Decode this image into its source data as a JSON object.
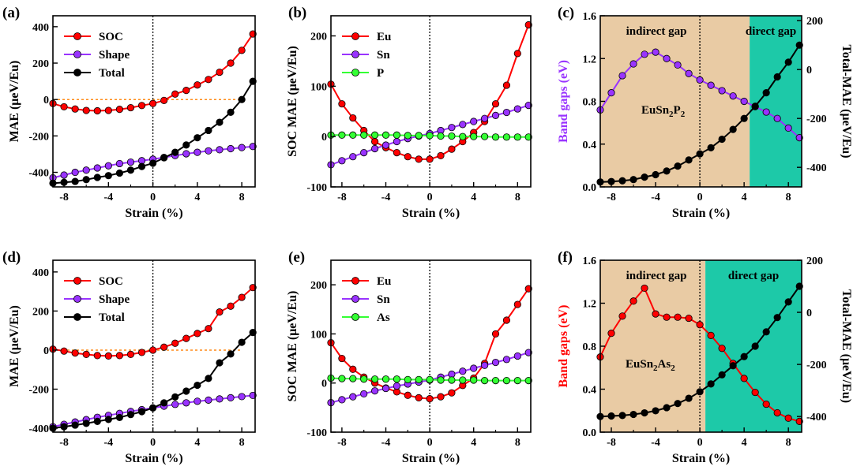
{
  "panels": [
    {
      "label": "(a)",
      "xlabel": "Strain (%)",
      "ylabel": "MAE (μeV/Eu)",
      "xlim": [
        -9,
        9.2
      ],
      "ylim": [
        -480,
        460
      ],
      "xticks": [
        -8,
        -4,
        0,
        4,
        8
      ],
      "yticks": [
        -400,
        -200,
        0,
        200,
        400
      ],
      "zero_line": true,
      "legend": "top-left",
      "series": [
        {
          "name": "SOC",
          "color": "#ff0000",
          "x": [
            -9,
            -8,
            -7,
            -6,
            -5,
            -4,
            -3,
            -2,
            -1,
            0,
            1,
            2,
            3,
            4,
            5,
            6,
            7,
            8,
            9
          ],
          "y": [
            -22,
            -40,
            -52,
            -60,
            -62,
            -60,
            -54,
            -45,
            -33,
            -22,
            -5,
            30,
            50,
            80,
            110,
            150,
            200,
            270,
            360
          ]
        },
        {
          "name": "Shape",
          "color": "#9933ff",
          "x": [
            -9,
            -8,
            -7,
            -6,
            -5,
            -4,
            -3,
            -2,
            -1,
            0,
            1,
            2,
            3,
            4,
            5,
            6,
            7,
            8,
            9
          ],
          "y": [
            -430,
            -415,
            -400,
            -388,
            -376,
            -364,
            -352,
            -344,
            -336,
            -328,
            -318,
            -308,
            -298,
            -290,
            -282,
            -276,
            -270,
            -264,
            -258
          ]
        },
        {
          "name": "Total",
          "color": "#000000",
          "x": [
            -9,
            -8,
            -7,
            -6,
            -5,
            -4,
            -3,
            -2,
            -1,
            0,
            1,
            2,
            3,
            4,
            5,
            6,
            7,
            8,
            9
          ],
          "y": [
            -460,
            -455,
            -450,
            -440,
            -428,
            -418,
            -404,
            -388,
            -368,
            -350,
            -320,
            -290,
            -250,
            -210,
            -170,
            -125,
            -70,
            0,
            100
          ]
        }
      ]
    },
    {
      "label": "(b)",
      "xlabel": "Strain (%)",
      "ylabel": "SOC MAE (μeV/Eu)",
      "xlim": [
        -9,
        9.2
      ],
      "ylim": [
        -100,
        240
      ],
      "xticks": [
        -8,
        -4,
        0,
        4,
        8
      ],
      "yticks": [
        -100,
        0,
        100,
        200
      ],
      "zero_line": true,
      "legend": "top-left",
      "series": [
        {
          "name": "Eu",
          "color": "#ff0000",
          "x": [
            -9,
            -8,
            -7,
            -6,
            -5,
            -4,
            -3,
            -2,
            -1,
            0,
            1,
            2,
            3,
            4,
            5,
            6,
            7,
            8,
            9
          ],
          "y": [
            104,
            65,
            37,
            12,
            -10,
            -22,
            -32,
            -40,
            -45,
            -45,
            -38,
            -25,
            -10,
            8,
            30,
            65,
            102,
            165,
            222
          ]
        },
        {
          "name": "Sn",
          "color": "#9933ff",
          "x": [
            -9,
            -8,
            -7,
            -6,
            -5,
            -4,
            -3,
            -2,
            -1,
            0,
            1,
            2,
            3,
            4,
            5,
            6,
            7,
            8,
            9
          ],
          "y": [
            -56,
            -48,
            -40,
            -32,
            -24,
            -17,
            -10,
            -4,
            1,
            6,
            12,
            18,
            24,
            30,
            36,
            42,
            48,
            55,
            62
          ]
        },
        {
          "name": "P",
          "color": "#33ff33",
          "x": [
            -9,
            -8,
            -7,
            -6,
            -5,
            -4,
            -3,
            -2,
            -1,
            0,
            1,
            2,
            3,
            4,
            5,
            6,
            7,
            8,
            9
          ],
          "y": [
            3,
            3,
            3,
            3,
            3,
            3,
            3,
            2,
            2,
            2,
            1,
            1,
            0,
            0,
            0,
            -1,
            -1,
            -1,
            -1
          ]
        }
      ]
    },
    {
      "label": "(c)",
      "xlabel": "Strain (%)",
      "ylabel": "Band gaps (eV)",
      "ylabel_color": "#9933ff",
      "y2label": "Total-MAE (μeV/Eu)",
      "xlim": [
        -9,
        9.2
      ],
      "ylim": [
        0,
        1.6
      ],
      "y2lim": [
        -480,
        220
      ],
      "xticks": [
        -8,
        -4,
        0,
        4,
        8
      ],
      "yticks": [
        0.0,
        0.4,
        0.8,
        1.2,
        1.6
      ],
      "ytick_labels": [
        "0.0",
        "0.4",
        "0.8",
        "1.2",
        "1.6"
      ],
      "y2ticks": [
        -400,
        -200,
        0,
        200
      ],
      "region_split": 4.5,
      "region_labels": [
        "indirect gap",
        "direct gap"
      ],
      "region_colors": [
        "#e9cba4",
        "#1dc9a8"
      ],
      "compound": "EuSn2P2",
      "compound_parts": [
        "EuSn",
        "2",
        "P",
        "2"
      ],
      "series": [
        {
          "name": "",
          "axis": "left",
          "color": "#9933ff",
          "x": [
            -9,
            -8,
            -7,
            -6,
            -5,
            -4,
            -3,
            -2,
            -1,
            0,
            1,
            2,
            3,
            4,
            5,
            6,
            7,
            8,
            9
          ],
          "y": [
            0.72,
            0.88,
            1.04,
            1.15,
            1.24,
            1.26,
            1.2,
            1.14,
            1.06,
            1.0,
            0.95,
            0.9,
            0.85,
            0.8,
            0.75,
            0.7,
            0.64,
            0.55,
            0.46
          ]
        },
        {
          "name": "",
          "axis": "right",
          "color": "#000000",
          "x": [
            -9,
            -8,
            -7,
            -6,
            -5,
            -4,
            -3,
            -2,
            -1,
            0,
            1,
            2,
            3,
            4,
            5,
            6,
            7,
            8,
            9
          ],
          "y": [
            -460,
            -458,
            -455,
            -450,
            -440,
            -430,
            -415,
            -395,
            -370,
            -345,
            -320,
            -285,
            -245,
            -200,
            -150,
            -95,
            -30,
            30,
            100
          ]
        }
      ]
    },
    {
      "label": "(d)",
      "xlabel": "Strain (%)",
      "ylabel": "MAE (μeV/Eu)",
      "xlim": [
        -9,
        9.2
      ],
      "ylim": [
        -420,
        460
      ],
      "xticks": [
        -8,
        -4,
        0,
        4,
        8
      ],
      "yticks": [
        -400,
        -200,
        0,
        200,
        400
      ],
      "zero_line": true,
      "legend": "top-left",
      "series": [
        {
          "name": "SOC",
          "color": "#ff0000",
          "x": [
            -9,
            -8,
            -7,
            -6,
            -5,
            -4,
            -3,
            -2,
            -1,
            0,
            1,
            2,
            3,
            4,
            5,
            6,
            7,
            8,
            9
          ],
          "y": [
            5,
            -5,
            -15,
            -22,
            -28,
            -30,
            -28,
            -22,
            -12,
            0,
            15,
            35,
            60,
            85,
            110,
            195,
            225,
            270,
            320
          ]
        },
        {
          "name": "Shape",
          "color": "#9933ff",
          "x": [
            -9,
            -8,
            -7,
            -6,
            -5,
            -4,
            -3,
            -2,
            -1,
            0,
            1,
            2,
            3,
            4,
            5,
            6,
            7,
            8,
            9
          ],
          "y": [
            -392,
            -380,
            -368,
            -356,
            -344,
            -334,
            -324,
            -314,
            -305,
            -296,
            -287,
            -278,
            -270,
            -262,
            -256,
            -250,
            -244,
            -238,
            -232
          ]
        },
        {
          "name": "Total",
          "color": "#000000",
          "x": [
            -9,
            -8,
            -7,
            -6,
            -5,
            -4,
            -3,
            -2,
            -1,
            0,
            1,
            2,
            3,
            4,
            5,
            6,
            7,
            8,
            9
          ],
          "y": [
            -400,
            -392,
            -384,
            -375,
            -365,
            -355,
            -345,
            -330,
            -315,
            -296,
            -270,
            -240,
            -210,
            -180,
            -145,
            -65,
            -20,
            40,
            90
          ]
        }
      ]
    },
    {
      "label": "(e)",
      "xlabel": "Strain (%)",
      "ylabel": "SOC MAE (μeV/Eu)",
      "xlim": [
        -9,
        9.2
      ],
      "ylim": [
        -100,
        250
      ],
      "xticks": [
        -8,
        -4,
        0,
        4,
        8
      ],
      "yticks": [
        -100,
        0,
        100,
        200
      ],
      "zero_line": true,
      "legend": "top-left",
      "series": [
        {
          "name": "Eu",
          "color": "#ff0000",
          "x": [
            -9,
            -8,
            -7,
            -6,
            -5,
            -4,
            -3,
            -2,
            -1,
            0,
            1,
            2,
            3,
            4,
            5,
            6,
            7,
            8,
            9
          ],
          "y": [
            82,
            50,
            28,
            12,
            0,
            -10,
            -18,
            -25,
            -30,
            -32,
            -28,
            -20,
            -5,
            10,
            40,
            100,
            128,
            160,
            192
          ]
        },
        {
          "name": "Sn",
          "color": "#9933ff",
          "x": [
            -9,
            -8,
            -7,
            -6,
            -5,
            -4,
            -3,
            -2,
            -1,
            0,
            1,
            2,
            3,
            4,
            5,
            6,
            7,
            8,
            9
          ],
          "y": [
            -40,
            -34,
            -28,
            -22,
            -16,
            -11,
            -6,
            -2,
            2,
            6,
            12,
            18,
            24,
            30,
            36,
            42,
            48,
            55,
            62
          ]
        },
        {
          "name": "As",
          "color": "#33ff33",
          "x": [
            -9,
            -8,
            -7,
            -6,
            -5,
            -4,
            -3,
            -2,
            -1,
            0,
            1,
            2,
            3,
            4,
            5,
            6,
            7,
            8,
            9
          ],
          "y": [
            10,
            9,
            9,
            8,
            8,
            8,
            8,
            7,
            7,
            7,
            6,
            6,
            6,
            6,
            5,
            5,
            5,
            5,
            5
          ]
        }
      ]
    },
    {
      "label": "(f)",
      "xlabel": "Strain (%)",
      "ylabel": "Band gaps (eV)",
      "ylabel_color": "#ff0000",
      "y2label": "Total-MAE (μeV/Eu)",
      "xlim": [
        -9,
        9.2
      ],
      "ylim": [
        0,
        1.6
      ],
      "y2lim": [
        -460,
        200
      ],
      "xticks": [
        -8,
        -4,
        0,
        4,
        8
      ],
      "yticks": [
        0.0,
        0.4,
        0.8,
        1.2,
        1.6
      ],
      "ytick_labels": [
        "0.0",
        "0.4",
        "0.8",
        "1.2",
        "1.6"
      ],
      "y2ticks": [
        -400,
        -200,
        0,
        200
      ],
      "region_split": 0.5,
      "region_labels": [
        "indirect gap",
        "direct gap"
      ],
      "region_colors": [
        "#e9cba4",
        "#1dc9a8"
      ],
      "compound": "EuSn2As2",
      "compound_parts": [
        "EuSn",
        "2",
        "As",
        "2"
      ],
      "series": [
        {
          "name": "",
          "axis": "left",
          "color": "#ff0000",
          "x": [
            -9,
            -8,
            -7,
            -6,
            -5,
            -4,
            -3,
            -2,
            -1,
            0,
            1,
            2,
            3,
            4,
            5,
            6,
            7,
            8,
            9
          ],
          "y": [
            0.7,
            0.92,
            1.08,
            1.22,
            1.34,
            1.1,
            1.07,
            1.07,
            1.06,
            1.0,
            0.9,
            0.78,
            0.64,
            0.5,
            0.37,
            0.26,
            0.18,
            0.13,
            0.1
          ]
        },
        {
          "name": "",
          "axis": "right",
          "color": "#000000",
          "x": [
            -9,
            -8,
            -7,
            -6,
            -5,
            -4,
            -3,
            -2,
            -1,
            0,
            1,
            2,
            3,
            4,
            5,
            6,
            7,
            8,
            9
          ],
          "y": [
            -400,
            -398,
            -396,
            -392,
            -386,
            -378,
            -366,
            -350,
            -330,
            -305,
            -275,
            -240,
            -205,
            -170,
            -130,
            -75,
            -20,
            40,
            100
          ]
        }
      ]
    }
  ]
}
